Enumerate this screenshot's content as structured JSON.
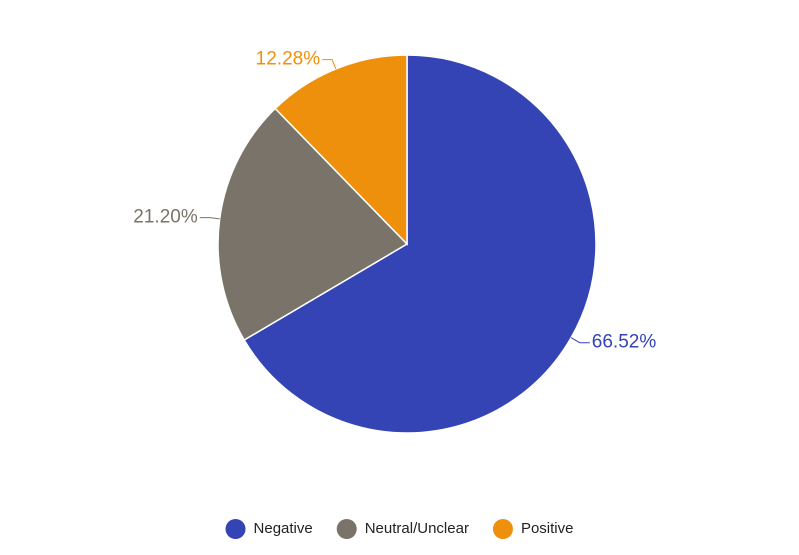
{
  "chart_data": {
    "type": "pie",
    "categories": [
      "Negative",
      "Neutral/Unclear",
      "Positive"
    ],
    "values": [
      66.52,
      21.2,
      12.28
    ],
    "value_labels": [
      "66.52%",
      "21.20%",
      "12.28%"
    ],
    "colors": [
      "#3444b4",
      "#7a7369",
      "#ef900c"
    ],
    "legend": "bottom"
  }
}
